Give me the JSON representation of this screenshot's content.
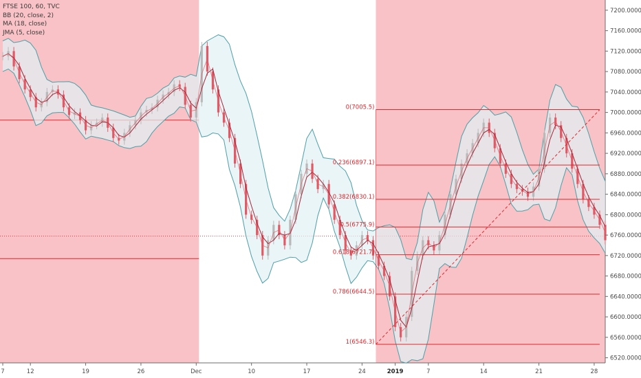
{
  "legend": {
    "line1": "FTSE 100, 60, TVC",
    "line2": "BB (20, close, 2)",
    "line3": "MA (18, close)",
    "line4": "JMA (5, close)"
  },
  "colors": {
    "shade": "#f8c2c6",
    "band_fill": "#dff1f4",
    "band_line": "#4e9ea6",
    "ma_line": "#a3283a",
    "fib_line": "#e0282e",
    "candle_up": "#b9b9b9",
    "candle_down": "#e05a66",
    "axis_text": "#4a4a4a"
  },
  "chart_data": {
    "type": "candlestick",
    "symbol": "FTSE 100",
    "interval": "60",
    "source": "TVC",
    "indicators": [
      "BB (20, close, 2)",
      "MA (18, close)",
      "JMA (5, close)"
    ],
    "ylim": [
      6510,
      7220
    ],
    "y_ticks": [
      7200,
      7160,
      7120,
      7080,
      7040,
      7000,
      6960,
      6920,
      6880,
      6840,
      6800,
      6760,
      6720,
      6680,
      6640,
      6600,
      6560,
      6520
    ],
    "y_tick_labels": [
      "7200.0000",
      "7160.0000",
      "7120.0000",
      "7080.0000",
      "7040.0000",
      "7000.0000",
      "6960.0000",
      "6920.0000",
      "6880.0000",
      "6840.0000",
      "6800.0000",
      "6760.0000",
      "6720.0000",
      "6680.0000",
      "6640.0000",
      "6600.0000",
      "6560.0000",
      "6520.0000"
    ],
    "x_ticks": [
      {
        "label": "7",
        "t": 0.5,
        "bold": false
      },
      {
        "label": "12",
        "t": 5.5,
        "bold": false
      },
      {
        "label": "19",
        "t": 15.5,
        "bold": false
      },
      {
        "label": "26",
        "t": 25.5,
        "bold": false
      },
      {
        "label": "Dec",
        "t": 35.5,
        "bold": false
      },
      {
        "label": "10",
        "t": 45.5,
        "bold": false
      },
      {
        "label": "17",
        "t": 55.5,
        "bold": false
      },
      {
        "label": "24",
        "t": 65.5,
        "bold": false
      },
      {
        "label": "2019",
        "t": 71.5,
        "bold": true
      },
      {
        "label": "7",
        "t": 77.5,
        "bold": false
      },
      {
        "label": "14",
        "t": 87.5,
        "bold": false
      },
      {
        "label": "21",
        "t": 97.5,
        "bold": false
      },
      {
        "label": "28",
        "t": 107.5,
        "bold": false
      }
    ],
    "t_range": [
      0,
      109.5
    ],
    "shaded_regions": [
      [
        0,
        36
      ],
      [
        68,
        109.5
      ]
    ],
    "horizontal_lines": [
      6985,
      6714
    ],
    "dotted_line": 6758,
    "fibonacci": {
      "t_start": 68,
      "t_end": 108.5,
      "levels": [
        {
          "label": "0(7005.5)",
          "value": 7005.5
        },
        {
          "label": "0.236(6897.1)",
          "value": 6897.1
        },
        {
          "label": "0.382(6830.1)",
          "value": 6830.1
        },
        {
          "label": "0.5(6775.9)",
          "value": 6775.9
        },
        {
          "label": "0.618(6721.7)",
          "value": 6721.7
        },
        {
          "label": "0.786(6644.5)",
          "value": 6644.5
        },
        {
          "label": "1(6546.3)",
          "value": 6546.3
        }
      ],
      "trend_from": [
        68,
        6546.3
      ],
      "trend_to": [
        108.5,
        7005.5
      ]
    },
    "close": [
      7110,
      7120,
      7090,
      7065,
      7045,
      7030,
      7010,
      7020,
      7040,
      7045,
      7035,
      7010,
      6995,
      7000,
      6985,
      6965,
      6975,
      6980,
      6990,
      6970,
      6950,
      6945,
      6960,
      6975,
      6985,
      7000,
      7005,
      7010,
      7025,
      7035,
      7040,
      7055,
      7050,
      7015,
      6990,
      7020,
      7130,
      7080,
      7045,
      7000,
      6980,
      6950,
      6900,
      6860,
      6800,
      6790,
      6760,
      6720,
      6750,
      6780,
      6760,
      6740,
      6790,
      6840,
      6880,
      6900,
      6870,
      6850,
      6860,
      6820,
      6790,
      6760,
      6730,
      6720,
      6740,
      6760,
      6750,
      6720,
      6700,
      6680,
      6640,
      6580,
      6560,
      6600,
      6690,
      6720,
      6750,
      6740,
      6730,
      6760,
      6800,
      6840,
      6870,
      6900,
      6920,
      6940,
      6960,
      6980,
      6960,
      6930,
      6900,
      6880,
      6860,
      6850,
      6845,
      6835,
      6855,
      6890,
      6960,
      6990,
      6975,
      6950,
      6920,
      6890,
      6860,
      6830,
      6815,
      6800,
      6780,
      6750
    ]
  }
}
